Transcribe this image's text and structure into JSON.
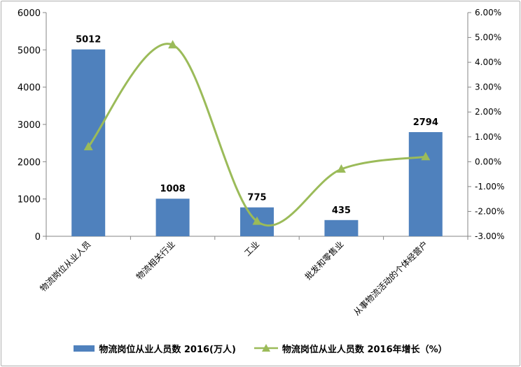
{
  "chart_data": {
    "type": "bar+line",
    "categories": [
      "物流岗位从业人员",
      "物流相关行业",
      "工业",
      "批发和零售业",
      "从事物流活动的个体经营户"
    ],
    "series": [
      {
        "name": "物流岗位从业人员数 2016(万人)",
        "type": "bar",
        "axis": "left",
        "values": [
          5012,
          1008,
          775,
          435,
          2794
        ],
        "labels": [
          "5012",
          "1008",
          "775",
          "435",
          "2794"
        ],
        "color": "#4F81BD"
      },
      {
        "name": "物流岗位从业人员数 2016年增长（%）",
        "type": "line",
        "axis": "right",
        "values": [
          0.6,
          4.7,
          -2.4,
          -0.3,
          0.2
        ],
        "color": "#9BBB59",
        "marker": "triangle",
        "smooth": true
      }
    ],
    "left_axis": {
      "ylim": [
        0,
        6000
      ],
      "ticks": [
        "0",
        "1000",
        "2000",
        "3000",
        "4000",
        "5000",
        "6000"
      ]
    },
    "right_axis": {
      "ylim": [
        -3,
        6
      ],
      "ticks": [
        "-3.00%",
        "-2.00%",
        "-1.00%",
        "0.00%",
        "1.00%",
        "2.00%",
        "3.00%",
        "4.00%",
        "5.00%",
        "6.00%"
      ]
    },
    "legend_position": "bottom",
    "grid": false
  }
}
